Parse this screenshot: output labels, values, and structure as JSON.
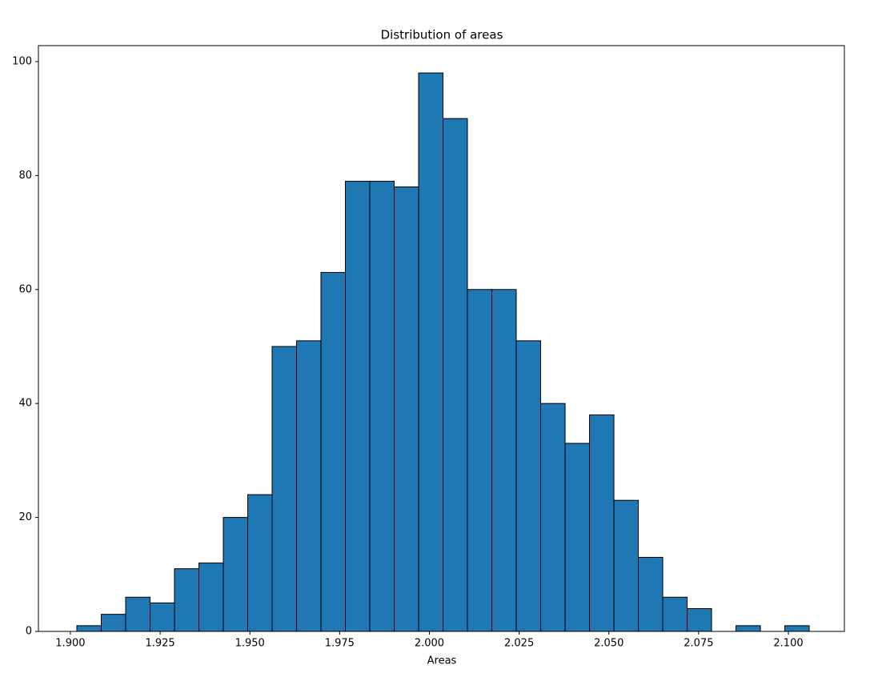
{
  "chart_data": {
    "type": "histogram",
    "title": "Distribution of areas",
    "x_label": "Areas",
    "bins": [
      1.9018,
      1.9086,
      1.9154,
      1.9222,
      1.929,
      1.9358,
      1.9426,
      1.9494,
      1.9562,
      1.963,
      1.9698,
      1.9766,
      1.9834,
      1.9902,
      1.997,
      2.0038,
      2.0106,
      2.0174,
      2.0242,
      2.031,
      2.0378,
      2.0446,
      2.0514,
      2.0582,
      2.065,
      2.0718,
      2.0786,
      2.0854,
      2.0922,
      2.099,
      2.1058
    ],
    "values": [
      1,
      3,
      6,
      5,
      11,
      12,
      20,
      24,
      50,
      51,
      63,
      79,
      79,
      78,
      98,
      90,
      60,
      60,
      51,
      40,
      33,
      38,
      23,
      13,
      6,
      4,
      0,
      1,
      0,
      1
    ],
    "color": "#1f77b4",
    "edgecolor": "#000000",
    "xlim": [
      1.8911,
      2.1156
    ],
    "xticks": [
      {
        "value": 1.9,
        "label": "1.900"
      },
      {
        "value": 1.925,
        "label": "1.925"
      },
      {
        "value": 1.95,
        "label": "1.950"
      },
      {
        "value": 1.975,
        "label": "1.975"
      },
      {
        "value": 2.0,
        "label": "2.000"
      },
      {
        "value": 2.025,
        "label": "2.025"
      },
      {
        "value": 2.05,
        "label": "2.050"
      },
      {
        "value": 2.075,
        "label": "2.075"
      },
      {
        "value": 2.1,
        "label": "2.100"
      }
    ],
    "ylim": [
      0,
      102.8
    ],
    "yticks": [
      0,
      20,
      40,
      60,
      80,
      100
    ],
    "grid": false
  }
}
